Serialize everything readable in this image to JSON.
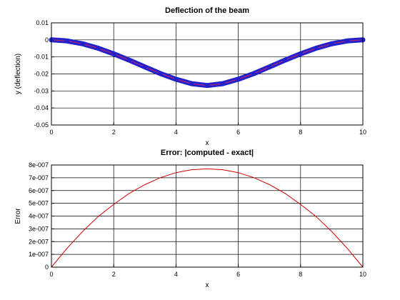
{
  "chart_data": [
    {
      "type": "line",
      "title": "Deflection of the beam",
      "xlabel": "x",
      "ylabel": "y (deflection)",
      "xlim": [
        0,
        10
      ],
      "ylim": [
        -0.05,
        0.01
      ],
      "xticks": [
        "0",
        "2",
        "4",
        "6",
        "8",
        "10"
      ],
      "yticks": [
        "0.01",
        "0",
        "-0.01",
        "-0.02",
        "-0.03",
        "-0.04",
        "-0.05"
      ],
      "grid": true,
      "series": [
        {
          "style": "line with dense markers",
          "color": "#2222cc",
          "x": [
            0,
            0.5,
            1,
            1.5,
            2,
            2.5,
            3,
            3.5,
            4,
            4.5,
            5,
            5.5,
            6,
            6.5,
            7,
            7.5,
            8,
            8.5,
            9,
            9.5,
            10
          ],
          "y": [
            0,
            -0.0006,
            -0.0023,
            -0.0049,
            -0.0082,
            -0.0119,
            -0.0159,
            -0.0198,
            -0.0231,
            -0.0257,
            -0.0268,
            -0.0257,
            -0.0231,
            -0.0198,
            -0.0159,
            -0.0119,
            -0.0082,
            -0.0049,
            -0.0023,
            -0.0006,
            0
          ]
        }
      ]
    },
    {
      "type": "line",
      "title": "Error: |computed - exact|",
      "xlabel": "x",
      "ylabel": "Error",
      "xlim": [
        0,
        10
      ],
      "ylim": [
        0,
        8e-07
      ],
      "xticks": [
        "0",
        "2",
        "4",
        "6",
        "8",
        "10"
      ],
      "yticks": [
        "8e-007",
        "7e-007",
        "6e-007",
        "5e-007",
        "4e-007",
        "3e-007",
        "2e-007",
        "1e-007",
        "0"
      ],
      "grid": true,
      "series": [
        {
          "color": "#cc0000",
          "x": [
            0,
            0.5,
            1,
            1.5,
            2,
            2.5,
            3,
            3.5,
            4,
            4.5,
            5,
            5.5,
            6,
            6.5,
            7,
            7.5,
            8,
            8.5,
            9,
            9.5,
            10
          ],
          "y": [
            0,
            1.47e-07,
            2.79e-07,
            3.96e-07,
            4.92e-07,
            5.78e-07,
            6.46e-07,
            7.01e-07,
            7.4e-07,
            7.63e-07,
            7.7e-07,
            7.63e-07,
            7.4e-07,
            7.01e-07,
            6.46e-07,
            5.78e-07,
            4.92e-07,
            3.96e-07,
            2.79e-07,
            1.47e-07,
            0
          ]
        }
      ]
    }
  ]
}
